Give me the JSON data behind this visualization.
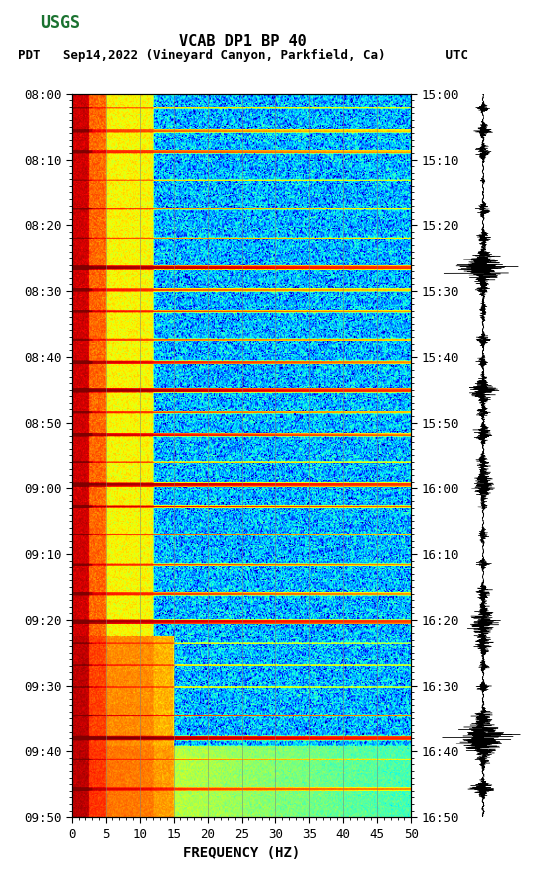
{
  "title_line1": "VCAB DP1 BP 40",
  "title_line2": "PDT   Sep14,2022 (Vineyard Canyon, Parkfield, Ca)        UTC",
  "xlabel": "FREQUENCY (HZ)",
  "freq_min": 0,
  "freq_max": 50,
  "freq_ticks": [
    0,
    5,
    10,
    15,
    20,
    25,
    30,
    35,
    40,
    45,
    50
  ],
  "time_left_labels": [
    "08:00",
    "08:10",
    "08:20",
    "08:30",
    "08:40",
    "08:50",
    "09:00",
    "09:10",
    "09:20",
    "09:30",
    "09:40",
    "09:50"
  ],
  "time_right_labels": [
    "15:00",
    "15:10",
    "15:20",
    "15:30",
    "15:40",
    "15:50",
    "16:00",
    "16:10",
    "16:20",
    "16:30",
    "16:40",
    "16:50"
  ],
  "n_time_steps": 660,
  "n_freq_steps": 500,
  "background_color": "#ffffff",
  "spectrogram_bg_color": "#00008B",
  "usgs_green": "#1a7230",
  "vertical_line_color": "#808080",
  "vertical_line_positions": [
    5,
    10,
    15,
    20,
    25,
    30,
    35,
    40,
    45
  ],
  "colormap": "jet",
  "fig_width": 5.52,
  "fig_height": 8.93,
  "title_fontsize": 11,
  "label_fontsize": 10,
  "tick_fontsize": 9
}
